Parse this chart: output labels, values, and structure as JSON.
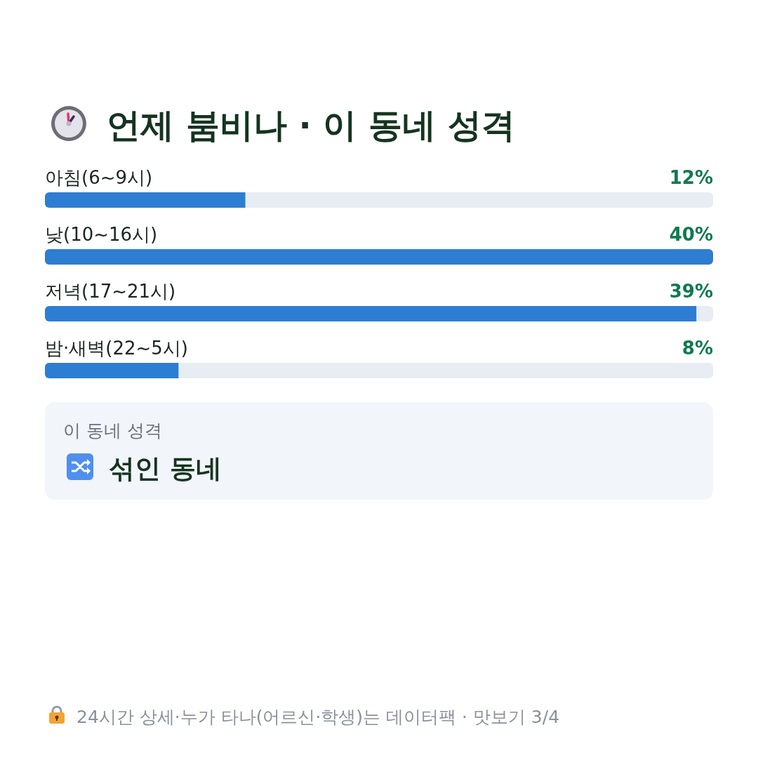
{
  "chart_data": [
    {
      "type": "bar",
      "orientation": "horizontal",
      "title": "언제 붐비나 · 이 동네 성격",
      "categories": [
        "아침(6~9시)",
        "낮(10~16시)",
        "저녁(17~21시)",
        "밤·새벽(22~5시)"
      ],
      "values": [
        12,
        40,
        39,
        8
      ],
      "value_labels": [
        "12%",
        "40%",
        "39%",
        "8%"
      ],
      "color": "#2d7dd2"
    },
    {
      "type": "other",
      "title": "이 동네 성격",
      "annotations": [
        "섞인 동네",
        "24시간 상세·누가 타나(어르신·학생)는 데이터팩 · 맛보기 3/4"
      ]
    }
  ]
}
